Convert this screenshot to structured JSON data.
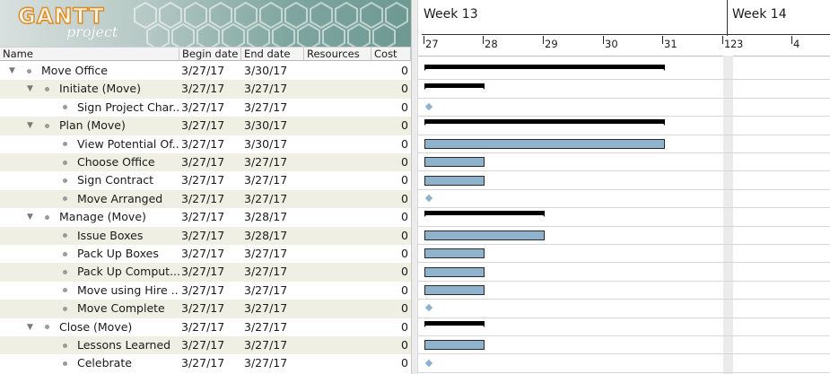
{
  "logo": {
    "main": "GANTT",
    "sub": "project"
  },
  "columns": {
    "name": "Name",
    "begin": "Begin date",
    "end": "End date",
    "resources": "Resources",
    "cost": "Cost"
  },
  "tasks": [
    {
      "name": "Move Office",
      "begin": "3/27/17",
      "end": "3/30/17",
      "cost": "0",
      "level": 0,
      "type": "summary",
      "expanded": true
    },
    {
      "name": "Initiate (Move)",
      "begin": "3/27/17",
      "end": "3/27/17",
      "cost": "0",
      "level": 1,
      "type": "summary",
      "expanded": true
    },
    {
      "name": "Sign Project Char...",
      "begin": "3/27/17",
      "end": "3/27/17",
      "cost": "0",
      "level": 2,
      "type": "milestone"
    },
    {
      "name": "Plan (Move)",
      "begin": "3/27/17",
      "end": "3/30/17",
      "cost": "0",
      "level": 1,
      "type": "summary",
      "expanded": true
    },
    {
      "name": "View Potential Of...",
      "begin": "3/27/17",
      "end": "3/30/17",
      "cost": "0",
      "level": 2,
      "type": "task"
    },
    {
      "name": "Choose Office",
      "begin": "3/27/17",
      "end": "3/27/17",
      "cost": "0",
      "level": 2,
      "type": "task"
    },
    {
      "name": "Sign Contract",
      "begin": "3/27/17",
      "end": "3/27/17",
      "cost": "0",
      "level": 2,
      "type": "task"
    },
    {
      "name": "Move Arranged",
      "begin": "3/27/17",
      "end": "3/27/17",
      "cost": "0",
      "level": 2,
      "type": "milestone"
    },
    {
      "name": "Manage (Move)",
      "begin": "3/27/17",
      "end": "3/28/17",
      "cost": "0",
      "level": 1,
      "type": "summary",
      "expanded": true
    },
    {
      "name": "Issue Boxes",
      "begin": "3/27/17",
      "end": "3/28/17",
      "cost": "0",
      "level": 2,
      "type": "task"
    },
    {
      "name": "Pack Up Boxes",
      "begin": "3/27/17",
      "end": "3/27/17",
      "cost": "0",
      "level": 2,
      "type": "task"
    },
    {
      "name": "Pack Up Comput...",
      "begin": "3/27/17",
      "end": "3/27/17",
      "cost": "0",
      "level": 2,
      "type": "task"
    },
    {
      "name": "Move using Hire ...",
      "begin": "3/27/17",
      "end": "3/27/17",
      "cost": "0",
      "level": 2,
      "type": "task"
    },
    {
      "name": "Move Complete",
      "begin": "3/27/17",
      "end": "3/27/17",
      "cost": "0",
      "level": 2,
      "type": "milestone"
    },
    {
      "name": "Close (Move)",
      "begin": "3/27/17",
      "end": "3/27/17",
      "cost": "0",
      "level": 1,
      "type": "summary",
      "expanded": true
    },
    {
      "name": "Lessons Learned",
      "begin": "3/27/17",
      "end": "3/27/17",
      "cost": "0",
      "level": 2,
      "type": "task"
    },
    {
      "name": "Celebrate",
      "begin": "3/27/17",
      "end": "3/27/17",
      "cost": "0",
      "level": 2,
      "type": "milestone"
    }
  ],
  "timeline": {
    "weeks": [
      "Week 13",
      "Week 14"
    ],
    "days": [
      "27",
      "28",
      "29",
      "30",
      "31",
      "1",
      "2",
      "3",
      "4"
    ]
  },
  "colors": {
    "row_alt": "#eff0e3",
    "task_bar": "#8fb3cc",
    "summary_bar": "#000000",
    "logo_stroke": "#e08a1a"
  }
}
